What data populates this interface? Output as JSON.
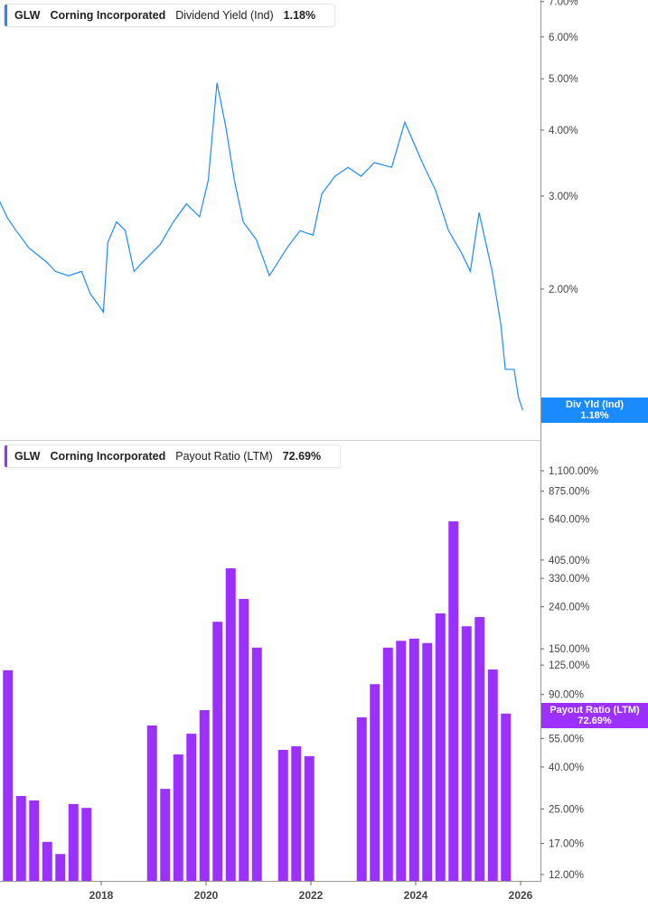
{
  "chart_data": [
    {
      "type": "line",
      "legend": {
        "ticker": "GLW",
        "company": "Corning Incorporated",
        "metric": "Dividend Yield (Ind)",
        "value": "1.18%"
      },
      "tag": {
        "label": "Div Yld (Ind)",
        "value": "1.18%"
      },
      "color": "#1a8cff",
      "yscale": "log",
      "ylim": [
        1.1,
        7.0
      ],
      "y_ticks": [
        "7.00%",
        "6.00%",
        "5.00%",
        "4.00%",
        "3.00%",
        "2.00%"
      ],
      "y_tick_values": [
        7,
        6,
        5,
        4,
        3,
        2
      ],
      "axis_position": "right",
      "x": [
        "2016-01",
        "2016-03",
        "2016-05",
        "2016-08",
        "2016-12",
        "2017-02",
        "2017-05",
        "2017-08",
        "2017-10",
        "2018-01",
        "2018-02",
        "2018-04",
        "2018-06",
        "2018-08",
        "2018-10",
        "2019-02",
        "2019-05",
        "2019-08",
        "2019-11",
        "2020-01",
        "2020-03",
        "2020-05",
        "2020-07",
        "2020-09",
        "2020-12",
        "2021-03",
        "2021-07",
        "2021-10",
        "2022-01",
        "2022-03",
        "2022-06",
        "2022-09",
        "2022-12",
        "2023-03",
        "2023-07",
        "2023-10",
        "2024-02",
        "2024-05",
        "2024-08",
        "2024-11",
        "2025-01",
        "2025-03",
        "2025-06",
        "2025-08",
        "2025-09",
        "2025-11",
        "2025-12",
        "2026-01"
      ],
      "y": [
        2.96,
        2.73,
        2.58,
        2.39,
        2.25,
        2.16,
        2.12,
        2.16,
        1.96,
        1.81,
        2.45,
        2.68,
        2.58,
        2.16,
        2.25,
        2.43,
        2.68,
        2.9,
        2.74,
        3.21,
        4.91,
        4.06,
        3.21,
        2.68,
        2.48,
        2.12,
        2.39,
        2.58,
        2.53,
        3.03,
        3.27,
        3.4,
        3.27,
        3.47,
        3.4,
        4.14,
        3.47,
        3.08,
        2.58,
        2.34,
        2.16,
        2.79,
        2.16,
        1.71,
        1.41,
        1.41,
        1.25,
        1.18
      ]
    },
    {
      "type": "bar",
      "legend": {
        "ticker": "GLW",
        "company": "Corning Incorporated",
        "metric": "Payout Ratio (LTM)",
        "value": "72.69%"
      },
      "tag": {
        "label": "Payout Ratio (LTM)",
        "value": "72.69%"
      },
      "color": "#9b30ff",
      "yscale": "log",
      "ylim": [
        11.5,
        1300
      ],
      "y_ticks": [
        "1,100.00%",
        "875.00%",
        "640.00%",
        "405.00%",
        "330.00%",
        "240.00%",
        "150.00%",
        "125.00%",
        "90.00%",
        "55.00%",
        "40.00%",
        "25.00%",
        "17.00%",
        "12.00%"
      ],
      "y_tick_values": [
        1100,
        875,
        640,
        405,
        330,
        240,
        150,
        125,
        90,
        55,
        40,
        25,
        17,
        12
      ],
      "axis_position": "right",
      "categories": [
        "Q1 2016",
        "Q2 2016",
        "Q3 2016",
        "Q4 2016",
        "Q1 2017",
        "Q2 2017",
        "Q3 2017",
        "Q4 2018",
        "Q1 2019",
        "Q2 2019",
        "Q3 2019",
        "Q4 2019",
        "Q1 2020",
        "Q2 2020",
        "Q3 2020",
        "Q4 2020",
        "Q2 2021",
        "Q3 2021",
        "Q4 2021",
        "Q4 2022",
        "Q1 2023",
        "Q2 2023",
        "Q3 2023",
        "Q4 2023",
        "Q1 2024",
        "Q2 2024",
        "Q3 2024",
        "Q4 2024",
        "Q1 2025",
        "Q2 2025",
        "Q3 2025"
      ],
      "values": [
        118,
        28.9,
        27.5,
        17.3,
        15.1,
        26.4,
        25.3,
        63.6,
        31.3,
        46,
        58,
        75.5,
        203,
        369,
        262,
        152,
        48.4,
        50.4,
        45.1,
        69.7,
        101,
        152,
        164,
        168,
        160,
        223,
        624,
        193,
        214,
        119,
        72.69
      ]
    }
  ],
  "x_axis": {
    "ticks": [
      "2018",
      "2020",
      "2022",
      "2024",
      "2026"
    ],
    "tick_values": [
      2018,
      2020,
      2022,
      2024,
      2026
    ],
    "range": [
      2016.07,
      2026.4
    ]
  }
}
